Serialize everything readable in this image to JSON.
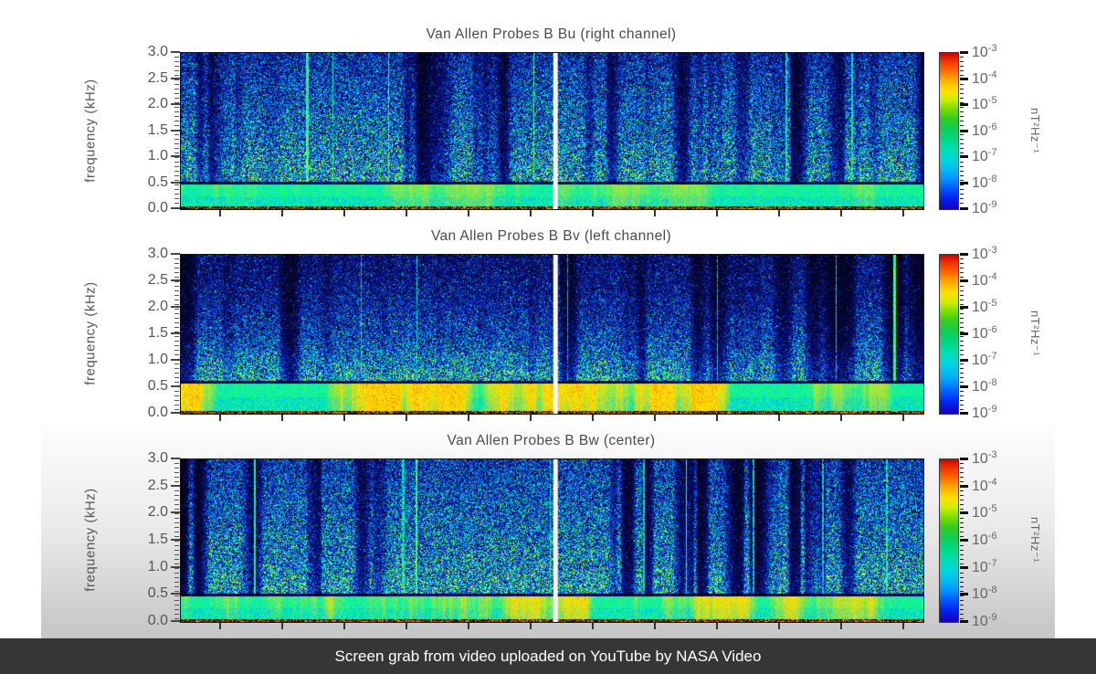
{
  "colors": {
    "page_bg": "#ffffff",
    "caption_bg": "#363636",
    "caption_text": "#ffffff",
    "axis_text": "#555555",
    "title_text": "#4a4a4a",
    "playhead": "#f8f8f8"
  },
  "caption": {
    "text": "Screen grab from video uploaded on YouTube by NASA Video"
  },
  "chart_data": [
    {
      "type": "heatmap",
      "title": "Van Allen Probes B Bu (right channel)",
      "ylabel": "frequency (kHz)",
      "ylim": [
        0.0,
        3.0
      ],
      "ytick_labels": [
        "3.0",
        "2.5",
        "2.0",
        "1.5",
        "1.0",
        "0.5",
        "0.0"
      ],
      "xlabel": "",
      "xtick_labels": [],
      "colorbar": {
        "scale": "log",
        "unit": "nT²Hz⁻¹",
        "max_exponent": -3,
        "min_exponent": -9,
        "tick_exponents": [
          -3,
          -4,
          -5,
          -6,
          -7,
          -8,
          -9
        ],
        "colormap": "rainbow"
      },
      "playhead_fraction": 0.504,
      "strong_emission_band_khz": [
        0.0,
        0.5
      ]
    },
    {
      "type": "heatmap",
      "title": "Van Allen Probes B Bv (left channel)",
      "ylabel": "frequency (kHz)",
      "ylim": [
        0.0,
        3.0
      ],
      "ytick_labels": [
        "3.0",
        "2.5",
        "2.0",
        "1.5",
        "1.0",
        "0.5",
        "0.0"
      ],
      "xlabel": "",
      "xtick_labels": [],
      "colorbar": {
        "scale": "log",
        "unit": "nT²Hz⁻¹",
        "max_exponent": -3,
        "min_exponent": -9,
        "tick_exponents": [
          -3,
          -4,
          -5,
          -6,
          -7,
          -8,
          -9
        ],
        "colormap": "rainbow"
      },
      "playhead_fraction": 0.504,
      "strong_emission_band_khz": [
        0.0,
        0.55
      ]
    },
    {
      "type": "heatmap",
      "title": "Van Allen Probes B Bw (center)",
      "ylabel": "frequency (kHz)",
      "ylim": [
        0.0,
        3.0
      ],
      "ytick_labels": [
        "3.0",
        "2.5",
        "2.0",
        "1.5",
        "1.0",
        "0.5",
        "0.0"
      ],
      "xlabel": "",
      "xtick_labels": [],
      "colorbar": {
        "scale": "log",
        "unit": "nT²Hz⁻¹",
        "max_exponent": -3,
        "min_exponent": -9,
        "tick_exponents": [
          -3,
          -4,
          -5,
          -6,
          -7,
          -8,
          -9
        ],
        "colormap": "rainbow"
      },
      "playhead_fraction": 0.504,
      "strong_emission_band_khz": [
        0.0,
        0.5
      ]
    }
  ]
}
